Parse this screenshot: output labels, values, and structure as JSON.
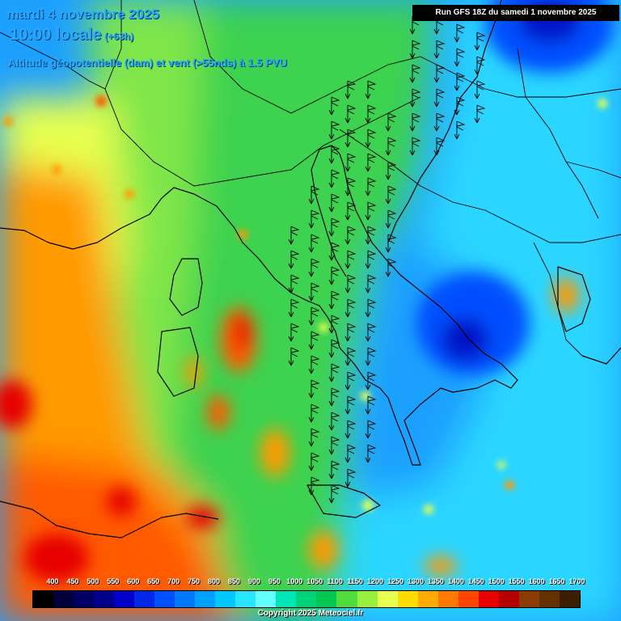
{
  "header": {
    "date": "mardi 4 novembre 2025",
    "time": "10:00 locale",
    "lead": "(+63h)",
    "subtitle": "Altitude géopotentielle (dam) et vent (>55nds) à 1.5 PVU",
    "run": "Run GFS 18Z du samedi 1 novembre 2025"
  },
  "legend": {
    "ticks": [
      "400",
      "450",
      "500",
      "550",
      "600",
      "650",
      "700",
      "750",
      "800",
      "850",
      "900",
      "950",
      "1000",
      "1050",
      "1100",
      "1150",
      "1200",
      "1250",
      "1300",
      "1350",
      "1400",
      "1450",
      "1500",
      "1550",
      "1600",
      "1650",
      "1700"
    ],
    "colors": [
      "#000000",
      "#00003c",
      "#000064",
      "#00008c",
      "#0000c8",
      "#0028e6",
      "#0050ff",
      "#0078ff",
      "#00a0ff",
      "#00c8ff",
      "#28e6ff",
      "#64ffff",
      "#00e6b4",
      "#00d278",
      "#00c850",
      "#50dc3c",
      "#96f03c",
      "#e6ff50",
      "#ffdc00",
      "#ffaa00",
      "#ff7800",
      "#ff4600",
      "#e60000",
      "#b40000",
      "#8c3c00",
      "#643200",
      "#3c1e00"
    ]
  },
  "map_colors": {
    "deep_blue": "#0014c8",
    "blue": "#0050ff",
    "light_blue": "#1ea0ff",
    "cyan": "#2ad6ff",
    "green": "#3cd250",
    "light_green": "#7fe64a",
    "yellow": "#e6ff50",
    "orange": "#ff9a00",
    "red_orange": "#ff5a00",
    "red": "#e60000"
  },
  "copyright": "Copyright 2025 Meteociel.fr"
}
